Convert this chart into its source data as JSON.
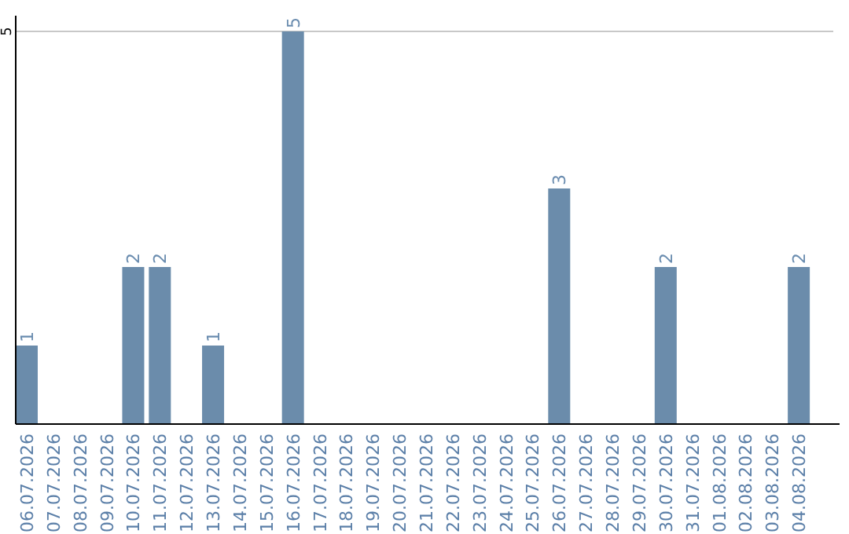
{
  "chart_data": {
    "type": "bar",
    "categories": [
      "06.07.2026",
      "07.07.2026",
      "08.07.2026",
      "09.07.2026",
      "10.07.2026",
      "11.07.2026",
      "12.07.2026",
      "13.07.2026",
      "14.07.2026",
      "15.07.2026",
      "16.07.2026",
      "17.07.2026",
      "18.07.2026",
      "19.07.2026",
      "20.07.2026",
      "21.07.2026",
      "22.07.2026",
      "23.07.2026",
      "24.07.2026",
      "25.07.2026",
      "26.07.2026",
      "27.07.2026",
      "28.07.2026",
      "29.07.2026",
      "30.07.2026",
      "31.07.2026",
      "01.08.2026",
      "02.08.2026",
      "03.08.2026",
      "04.08.2026"
    ],
    "values": [
      1,
      0,
      0,
      0,
      2,
      2,
      0,
      1,
      0,
      0,
      5,
      0,
      0,
      0,
      0,
      0,
      0,
      0,
      0,
      0,
      3,
      0,
      0,
      0,
      2,
      0,
      0,
      0,
      0,
      2
    ],
    "value_labels": [
      "1",
      null,
      null,
      null,
      "2",
      "2",
      null,
      "1",
      null,
      null,
      "5",
      null,
      null,
      null,
      null,
      null,
      null,
      null,
      null,
      null,
      "3",
      null,
      null,
      null,
      "2",
      null,
      null,
      null,
      null,
      "2"
    ],
    "color": "#6b8cab",
    "ylim": [
      0,
      5.2
    ],
    "yticks": [
      5
    ],
    "grid": "y"
  }
}
